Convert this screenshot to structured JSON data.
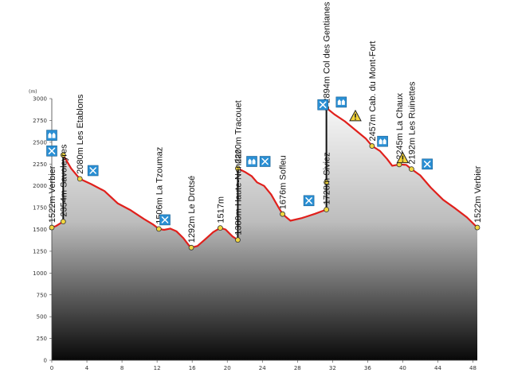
{
  "chart_data": {
    "type": "area",
    "title": "",
    "xlabel": "",
    "ylabel": "",
    "y_unit": "(m)",
    "xlim": [
      0,
      48.5
    ],
    "ylim": [
      0,
      3000
    ],
    "x_ticks": [
      0,
      4,
      8,
      12,
      16,
      20,
      24,
      28,
      32,
      36,
      40,
      44,
      48
    ],
    "y_ticks": [
      0,
      250,
      500,
      750,
      1000,
      1250,
      1500,
      1750,
      2000,
      2250,
      2500,
      2750,
      3000
    ],
    "grid": false,
    "colors": {
      "profile_line": "#e0201c",
      "fill_top": "#f4f4f4",
      "fill_bottom": "#0b0b0b",
      "marker": "#f2d640",
      "icon_bg": "#2a8fd4",
      "warning": "#f3d43a"
    },
    "profile": [
      [
        0,
        1522
      ],
      [
        0.5,
        1540
      ],
      [
        1.3,
        1590
      ],
      [
        1.3,
        2354
      ],
      [
        2.2,
        2200
      ],
      [
        3.2,
        2080
      ],
      [
        4.5,
        2020
      ],
      [
        6,
        1940
      ],
      [
        7.5,
        1800
      ],
      [
        9,
        1720
      ],
      [
        10.5,
        1620
      ],
      [
        11.5,
        1560
      ],
      [
        12.2,
        1506
      ],
      [
        12.8,
        1495
      ],
      [
        13.5,
        1510
      ],
      [
        14.2,
        1480
      ],
      [
        15,
        1400
      ],
      [
        15.6,
        1320
      ],
      [
        15.9,
        1292
      ],
      [
        16.6,
        1310
      ],
      [
        17.4,
        1380
      ],
      [
        18.4,
        1470
      ],
      [
        19.2,
        1517
      ],
      [
        19.8,
        1500
      ],
      [
        20.6,
        1420
      ],
      [
        21.2,
        1380
      ],
      [
        21.2,
        2200
      ],
      [
        22,
        2160
      ],
      [
        22.8,
        2110
      ],
      [
        23.4,
        2040
      ],
      [
        24.2,
        2000
      ],
      [
        25,
        1900
      ],
      [
        25.8,
        1760
      ],
      [
        26.3,
        1676
      ],
      [
        27.2,
        1600
      ],
      [
        28.5,
        1630
      ],
      [
        30,
        1680
      ],
      [
        31.3,
        1728
      ],
      [
        31.3,
        2894
      ],
      [
        32.2,
        2820
      ],
      [
        33.4,
        2740
      ],
      [
        34.6,
        2640
      ],
      [
        35.8,
        2540
      ],
      [
        36.5,
        2457
      ],
      [
        37.4,
        2400
      ],
      [
        38.2,
        2310
      ],
      [
        38.8,
        2230
      ],
      [
        39.6,
        2245
      ],
      [
        40.4,
        2240
      ],
      [
        41,
        2192
      ],
      [
        42,
        2120
      ],
      [
        43.2,
        1980
      ],
      [
        44.6,
        1840
      ],
      [
        46,
        1740
      ],
      [
        47.3,
        1640
      ],
      [
        48.5,
        1522
      ]
    ],
    "waypoints": [
      {
        "label": "1522m Verbier",
        "x": 0,
        "y": 1522
      },
      {
        "label": "2354m Savoleyres",
        "x": 1.3,
        "y": 1590
      },
      {
        "label": "2080m Les Etablons",
        "x": 3.2,
        "y": 2080
      },
      {
        "label": "1506m La Tzoumaz",
        "x": 12.2,
        "y": 1506
      },
      {
        "label": "1292m Le Drotsé",
        "x": 15.9,
        "y": 1292
      },
      {
        "label": "1517m",
        "x": 19.2,
        "y": 1517
      },
      {
        "label": "1380m Haute-Nendaz",
        "x": 21.2,
        "y": 1380
      },
      {
        "label": "2200m Tracouet",
        "x": 21.2,
        "y": 2200
      },
      {
        "label": "1676m Sofleu",
        "x": 26.3,
        "y": 1676
      },
      {
        "label": "1728m Siviez",
        "x": 31.3,
        "y": 1728
      },
      {
        "label": "2894m Col des Gentianes",
        "x": 31.3,
        "y": 2894
      },
      {
        "label": "2457m Cab. du Mont-Fort",
        "x": 36.5,
        "y": 2457
      },
      {
        "label": "2245m La Chaux",
        "x": 39.6,
        "y": 2245
      },
      {
        "label": "2192m Les Ruinettes",
        "x": 41,
        "y": 2192
      },
      {
        "label": "1522m Verbier",
        "x": 48.5,
        "y": 1522
      }
    ],
    "extra_markers": [
      {
        "x": 1.3,
        "y": 2354
      },
      {
        "x": 31.3,
        "y": 2040
      }
    ],
    "lift_segments": [
      {
        "x": 1.3,
        "y_from": 1590,
        "y_to": 2354
      },
      {
        "x": 21.2,
        "y_from": 1380,
        "y_to": 2200
      },
      {
        "x": 31.3,
        "y_from": 1728,
        "y_to": 2894
      }
    ],
    "icons": [
      {
        "name": "hut-icon",
        "x": 0,
        "y": 2580
      },
      {
        "name": "restaurant-icon",
        "x": 0,
        "y": 2400
      },
      {
        "name": "restaurant-icon",
        "x": 4.7,
        "y": 2175
      },
      {
        "name": "restaurant-icon",
        "x": 12.9,
        "y": 1610
      },
      {
        "name": "hut-icon",
        "x": 22.8,
        "y": 2280
      },
      {
        "name": "restaurant-icon",
        "x": 24.3,
        "y": 2280
      },
      {
        "name": "restaurant-icon",
        "x": 29.3,
        "y": 1830
      },
      {
        "name": "restaurant-icon",
        "x": 30.9,
        "y": 2930
      },
      {
        "name": "hut-icon",
        "x": 33,
        "y": 2960
      },
      {
        "name": "warning-icon",
        "x": 34.6,
        "y": 2800
      },
      {
        "name": "hut-icon",
        "x": 37.7,
        "y": 2510
      },
      {
        "name": "warning-icon",
        "x": 40,
        "y": 2320
      },
      {
        "name": "restaurant-icon",
        "x": 42.8,
        "y": 2250
      }
    ]
  }
}
